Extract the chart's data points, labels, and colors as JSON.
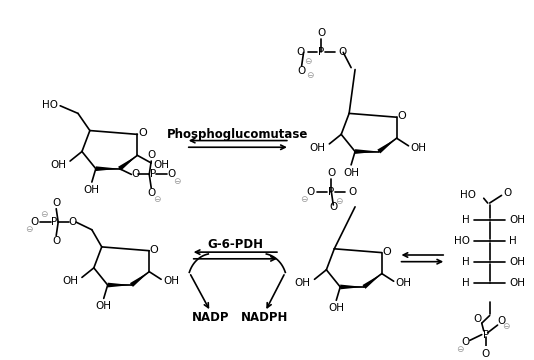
{
  "background": "#ffffff",
  "line_color": "#000000",
  "gray_color": "#999999",
  "enzyme1": "Phosphoglucomutase",
  "enzyme2": "G-6-PDH",
  "label_nadp": "NADP",
  "label_nadph": "NADPH",
  "figsize": [
    5.34,
    3.6
  ],
  "dpi": 100
}
